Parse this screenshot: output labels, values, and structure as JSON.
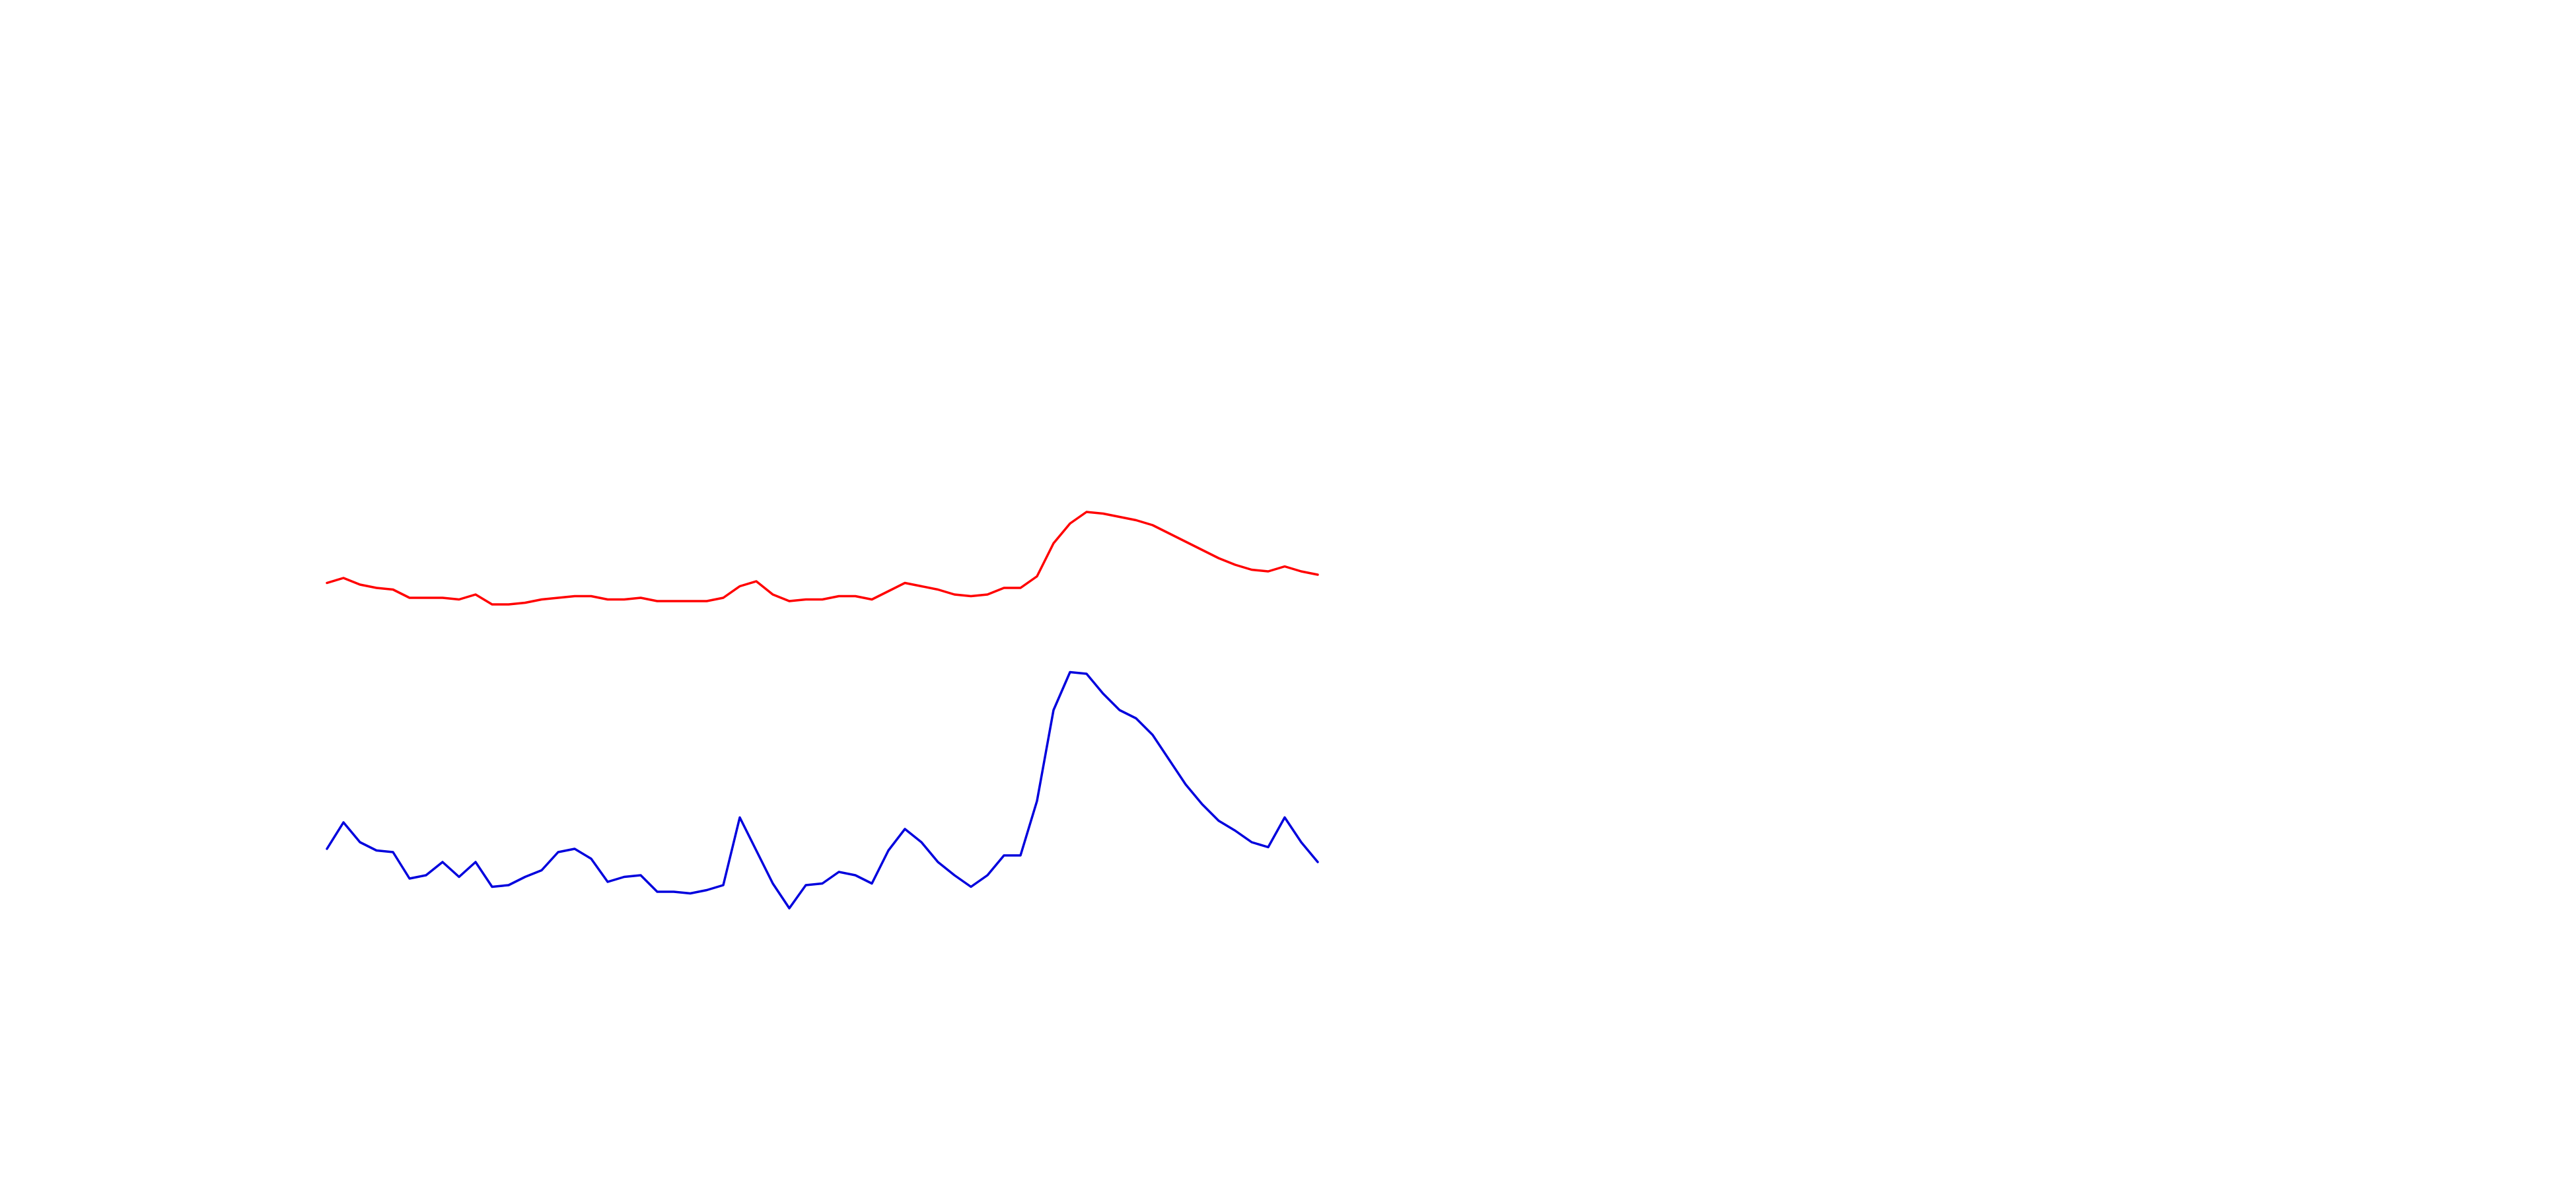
{
  "chart_data": {
    "type": "line",
    "ylim": [
      0,
      720
    ],
    "series": [
      {
        "color": "#ff0000",
        "values": [
          367,
          370,
          366,
          364,
          363,
          358,
          358,
          358,
          357,
          360,
          354,
          354,
          355,
          357,
          358,
          359,
          359,
          357,
          357,
          358,
          356,
          356,
          356,
          356,
          358,
          365,
          368,
          360,
          356,
          357,
          357,
          359,
          359,
          357,
          362,
          367,
          365,
          363,
          360,
          359,
          360,
          364,
          364,
          371,
          391,
          403,
          410,
          409,
          407,
          405,
          402,
          397,
          392,
          387,
          382,
          378,
          375,
          374,
          377,
          374,
          372
        ]
      },
      {
        "color": "#0000dd",
        "values": [
          206,
          222,
          210,
          205,
          204,
          188,
          190,
          198,
          189,
          198,
          183,
          184,
          189,
          193,
          204,
          206,
          200,
          186,
          189,
          190,
          180,
          180,
          179,
          181,
          184,
          225,
          205,
          185,
          170,
          184,
          185,
          192,
          190,
          185,
          205,
          218,
          210,
          198,
          190,
          183,
          190,
          202,
          202,
          235,
          290,
          313,
          312,
          300,
          290,
          285,
          275,
          260,
          245,
          233,
          223,
          217,
          210,
          207,
          225,
          210,
          198
        ]
      }
    ]
  }
}
